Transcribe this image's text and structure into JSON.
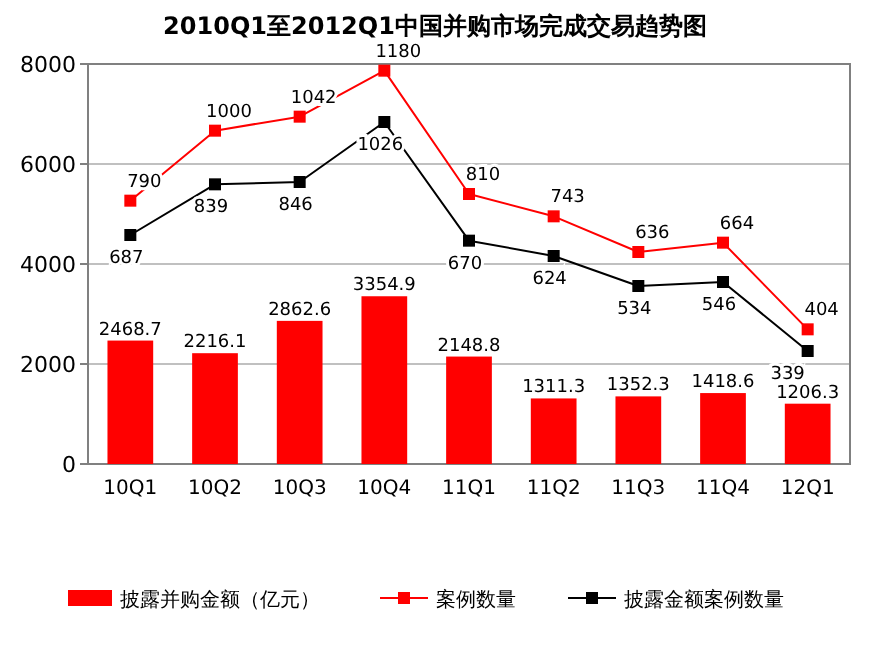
{
  "chart_data": {
    "type": "bar",
    "title": "2010Q1至2012Q1中国并购市场完成交易趋势图",
    "categories": [
      "10Q1",
      "10Q2",
      "10Q3",
      "10Q4",
      "11Q1",
      "11Q2",
      "11Q3",
      "11Q4",
      "12Q1"
    ],
    "series": [
      {
        "name": "披露并购金额（亿元）",
        "color": "#ff0000",
        "values": [
          2468.7,
          2216.1,
          2862.6,
          3354.9,
          2148.8,
          1311.3,
          1352.3,
          1418.6,
          1206.3
        ]
      },
      {
        "name": "案例数量",
        "type": "line",
        "axis": "y2",
        "color": "#ff0000",
        "marker": "square",
        "values": [
          790,
          1000,
          1042,
          1180,
          810,
          743,
          636,
          664,
          404
        ]
      },
      {
        "name": "披露金额案例数量",
        "type": "line",
        "axis": "y2",
        "color": "#000000",
        "marker": "square",
        "values": [
          687,
          839,
          846,
          1026,
          670,
          624,
          534,
          546,
          339
        ]
      }
    ],
    "ylim": [
      0,
      8000
    ],
    "yticks": [
      0,
      2000,
      4000,
      6000,
      8000
    ],
    "y2lim": [
      0,
      1200
    ],
    "grid": "y",
    "legend": "bottom",
    "data_labels": true
  }
}
